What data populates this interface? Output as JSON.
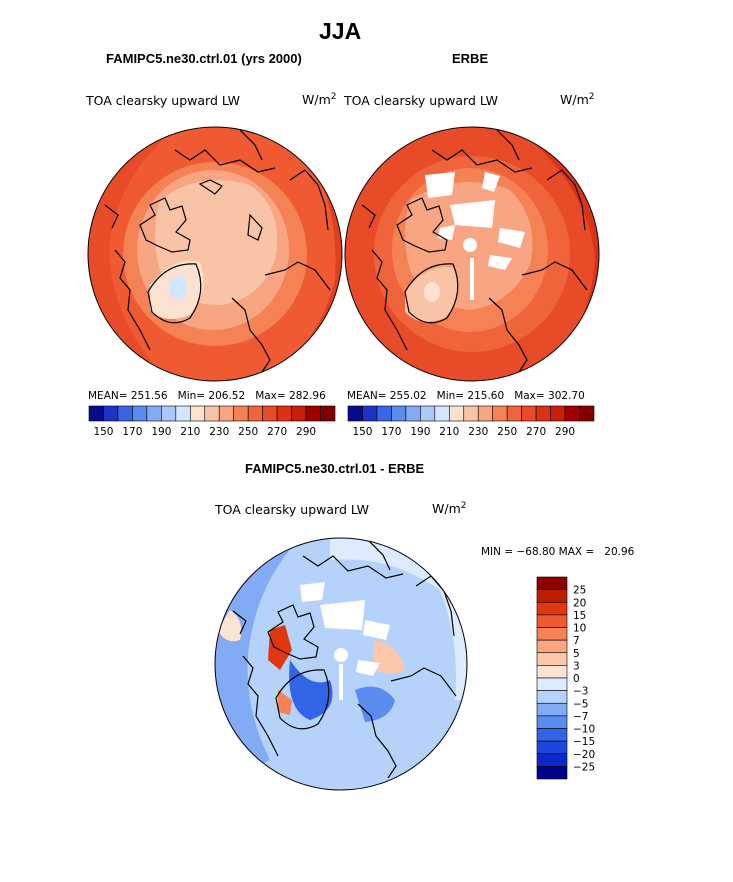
{
  "title": "JJA",
  "colors": {
    "abs_scale": [
      "#0a0a8c",
      "#1e32c8",
      "#3c64e6",
      "#5a8cf0",
      "#82aaf5",
      "#aac8fa",
      "#d2e6ff",
      "#fbe1d0",
      "#f9c3a5",
      "#f7a582",
      "#f58255",
      "#f0643c",
      "#e84b28",
      "#dc3214",
      "#c81e0a",
      "#a00000",
      "#800000"
    ],
    "diff_scale": [
      "#00008c",
      "#0a28c8",
      "#1e46dc",
      "#3264e6",
      "#5a8cf0",
      "#82aaf5",
      "#b4d2fa",
      "#dcebff",
      "#fde4d2",
      "#fbc8ab",
      "#f8a682",
      "#f58255",
      "#ef5a2d",
      "#e1370f",
      "#be1e00",
      "#8c0000"
    ]
  },
  "chart_data": [
    {
      "type": "heatmap",
      "projection": "north-polar-stereographic",
      "title": "FAMIPC5.ne30.ctrl.01 (yrs 2000)",
      "variable": "TOA clearsky upward LW",
      "units_base": "W/m",
      "units_exp": "2",
      "mean_label": "MEAN=",
      "mean": "251.56",
      "min_label": "Min=",
      "min": "206.52",
      "max_label": "Max=",
      "max": "282.96",
      "colorbar_ticks": [
        "150",
        "170",
        "190",
        "210",
        "230",
        "250",
        "270",
        "290"
      ],
      "levels": [
        150,
        160,
        170,
        180,
        190,
        200,
        210,
        220,
        230,
        240,
        250,
        260,
        270,
        280,
        290
      ],
      "field_summary": {
        "pole_region": 228,
        "greenland_min": 206.52,
        "midlatitude": 272,
        "subtropical_max": 282.96
      }
    },
    {
      "type": "heatmap",
      "projection": "north-polar-stereographic",
      "title": "ERBE",
      "variable": "TOA clearsky upward LW",
      "units_base": "W/m",
      "units_exp": "2",
      "mean_label": "MEAN=",
      "mean": "255.02",
      "min_label": "Min=",
      "min": "215.60",
      "max_label": "Max=",
      "max": "302.70",
      "colorbar_ticks": [
        "150",
        "170",
        "190",
        "210",
        "230",
        "250",
        "270",
        "290"
      ],
      "levels": [
        150,
        160,
        170,
        180,
        190,
        200,
        210,
        220,
        230,
        240,
        250,
        260,
        270,
        280,
        290
      ],
      "field_summary": {
        "pole_region": "missing",
        "greenland_min": 215.6,
        "midlatitude": 275,
        "subtropical_max": 302.7
      }
    },
    {
      "type": "heatmap",
      "projection": "north-polar-stereographic",
      "title": "FAMIPC5.ne30.ctrl.01 - ERBE",
      "variable": "TOA clearsky upward LW",
      "units_base": "W/m",
      "units_exp": "2",
      "range_text": "MIN = −68.80 MAX =   20.96",
      "min": -68.8,
      "max": 20.96,
      "colorbar_ticks": [
        "25",
        "20",
        "15",
        "10",
        "7",
        "5",
        "3",
        "0",
        "−3",
        "−5",
        "−7",
        "−10",
        "−15",
        "−20",
        "−25"
      ],
      "levels": [
        25,
        20,
        15,
        10,
        7,
        5,
        3,
        0,
        -3,
        -5,
        -7,
        -10,
        -15,
        -20,
        -25
      ]
    }
  ]
}
